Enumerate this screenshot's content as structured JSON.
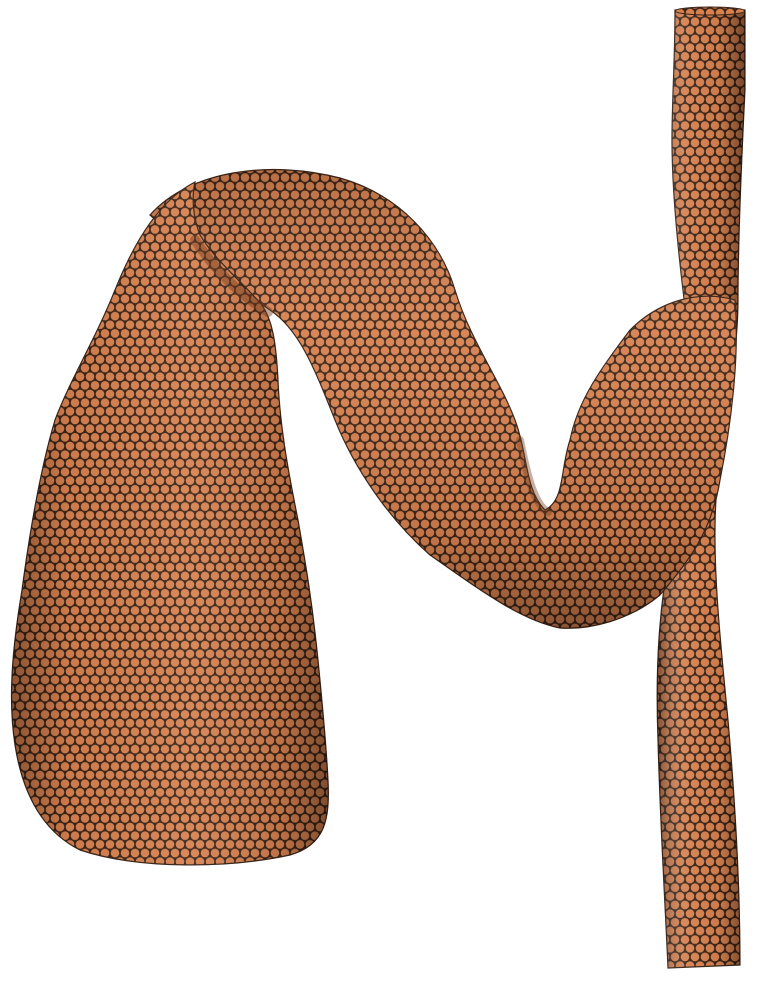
{
  "scene": {
    "background_color": "#ffffff",
    "object": "mesh-rendering",
    "surface_color": "#d7814f",
    "mesh_line_color": "#3a2418",
    "shadow_color": "#6e3b20"
  }
}
